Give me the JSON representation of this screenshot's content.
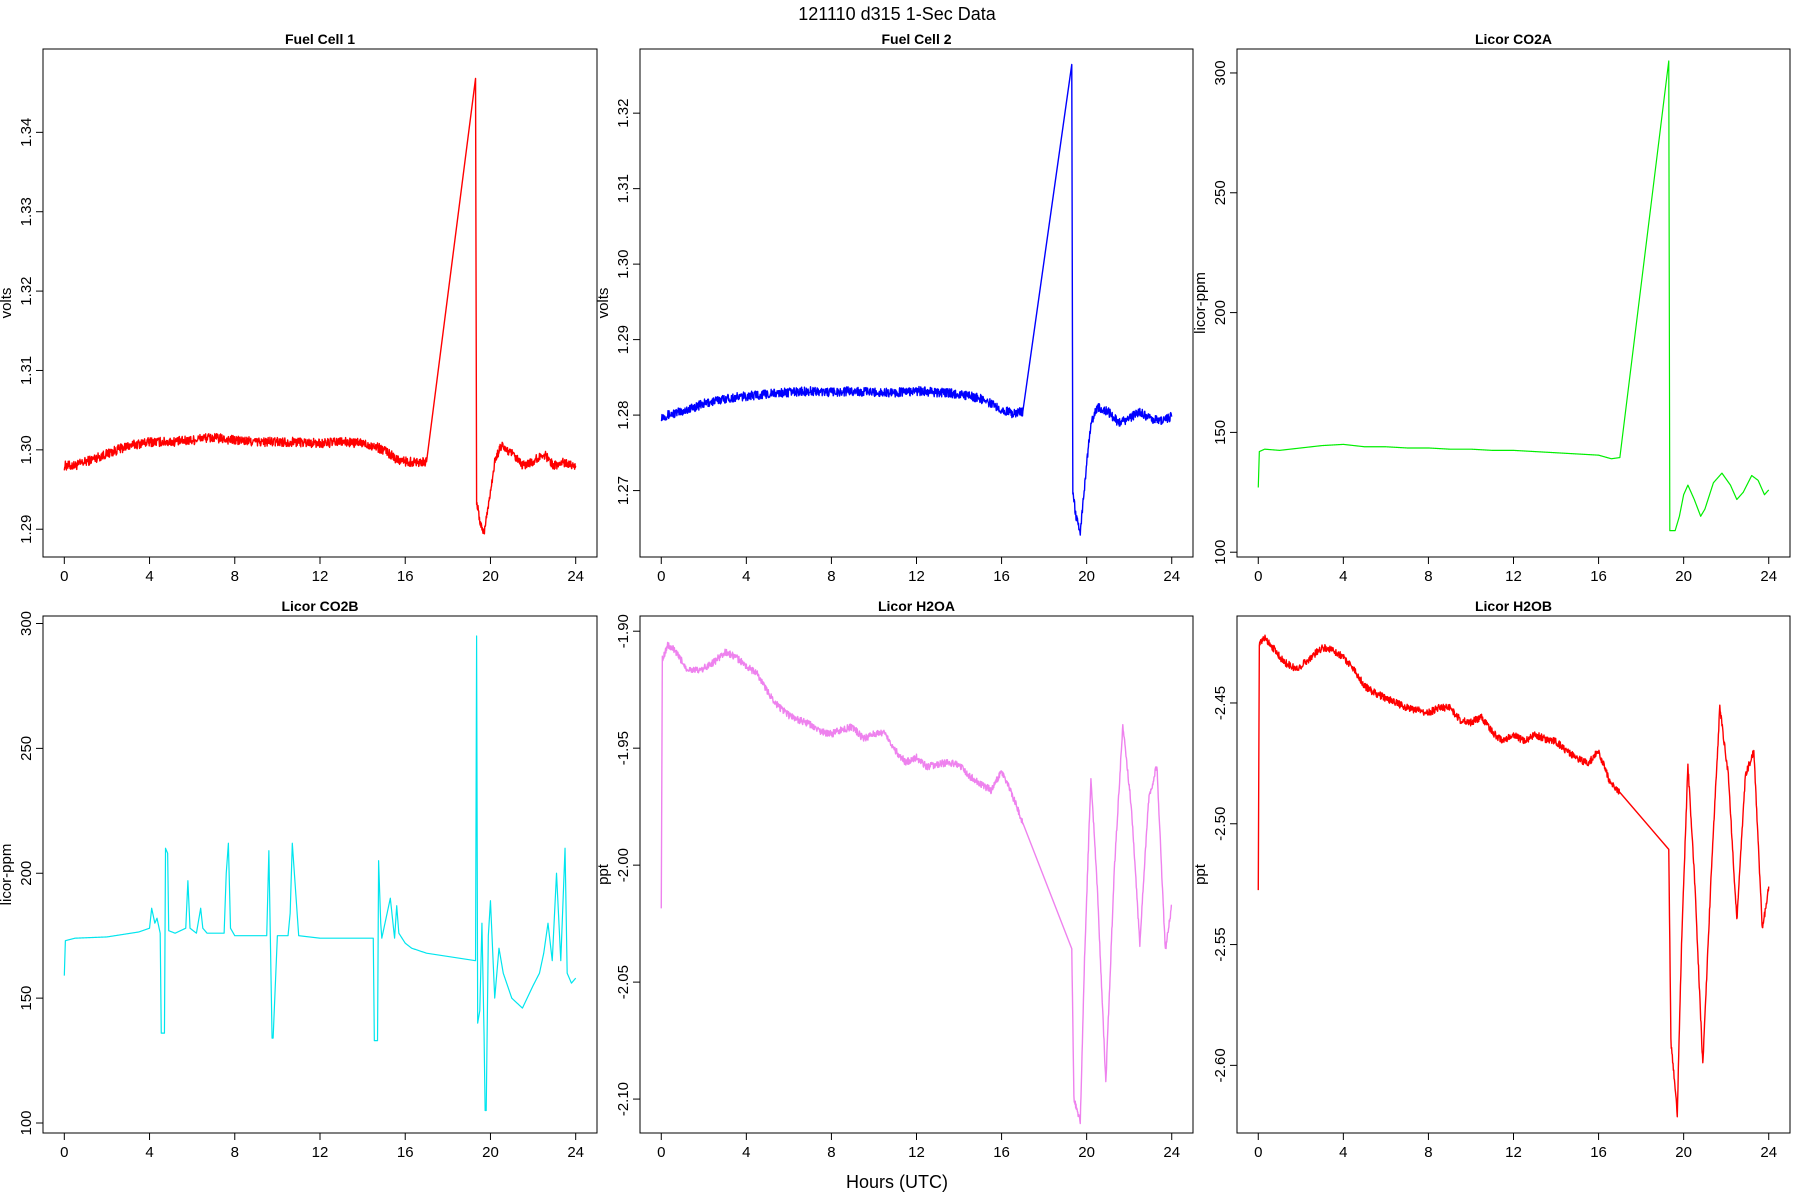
{
  "figure": {
    "title": "121110   d315   1-Sec Data",
    "xlabel": "Hours (UTC)"
  },
  "chart_data": [
    {
      "type": "line",
      "title": "Fuel Cell 1",
      "ylabel": "volts",
      "color": "#ff0000",
      "xlim": [
        -1,
        25
      ],
      "ylim": [
        1.2865,
        1.3505
      ],
      "xticks": [
        0,
        4,
        8,
        12,
        16,
        20,
        24
      ],
      "yticks": [
        1.29,
        1.3,
        1.31,
        1.32,
        1.33,
        1.34
      ],
      "ytick_labels": [
        "1.29",
        "1.30",
        "1.31",
        "1.32",
        "1.33",
        "1.34"
      ],
      "noise": 0.0006,
      "x": [
        0,
        0.5,
        1,
        2,
        3,
        4,
        5,
        6,
        6.5,
        7,
        8,
        9,
        10,
        11,
        12,
        13,
        14,
        14.5,
        15,
        15.5,
        16,
        16.5,
        17,
        19.3,
        19.35,
        19.5,
        19.7,
        19.9,
        20.2,
        20.5,
        21,
        21.5,
        22,
        22.5,
        23,
        23.5,
        24
      ],
      "y": [
        1.298,
        1.298,
        1.2985,
        1.2995,
        1.3005,
        1.301,
        1.301,
        1.3012,
        1.3015,
        1.3015,
        1.3012,
        1.301,
        1.301,
        1.301,
        1.3008,
        1.301,
        1.3008,
        1.3005,
        1.3,
        1.299,
        1.2985,
        1.2985,
        1.2985,
        1.3465,
        1.2935,
        1.291,
        1.2895,
        1.293,
        1.2985,
        1.3005,
        1.2995,
        1.298,
        1.2985,
        1.2995,
        1.298,
        1.2985,
        1.298
      ]
    },
    {
      "type": "line",
      "title": "Fuel Cell 2",
      "ylabel": "volts",
      "color": "#0000ff",
      "xlim": [
        -1,
        25
      ],
      "ylim": [
        1.2612,
        1.3285
      ],
      "xticks": [
        0,
        4,
        8,
        12,
        16,
        20,
        24
      ],
      "yticks": [
        1.27,
        1.28,
        1.29,
        1.3,
        1.31,
        1.32
      ],
      "ytick_labels": [
        "1.27",
        "1.28",
        "1.29",
        "1.30",
        "1.31",
        "1.32"
      ],
      "noise": 0.0006,
      "x": [
        0,
        1,
        2,
        3,
        4,
        5,
        6,
        7,
        8,
        9,
        10,
        11,
        12,
        13,
        14,
        15,
        15.5,
        16,
        16.5,
        17,
        19.3,
        19.35,
        19.5,
        19.7,
        19.9,
        20.2,
        20.5,
        21,
        21.5,
        22,
        22.5,
        23,
        23.5,
        24
      ],
      "y": [
        1.2798,
        1.2805,
        1.2815,
        1.2822,
        1.2825,
        1.2828,
        1.283,
        1.2832,
        1.283,
        1.2832,
        1.283,
        1.283,
        1.2832,
        1.283,
        1.2828,
        1.2822,
        1.2815,
        1.2808,
        1.2802,
        1.2805,
        1.3265,
        1.27,
        1.2665,
        1.2645,
        1.2705,
        1.279,
        1.281,
        1.2805,
        1.279,
        1.2795,
        1.2805,
        1.2795,
        1.2792,
        1.2798
      ]
    },
    {
      "type": "line",
      "title": "Licor CO2A",
      "ylabel": "licor-ppm",
      "color": "#00ee00",
      "xlim": [
        -1,
        25
      ],
      "ylim": [
        98,
        310
      ],
      "xticks": [
        0,
        4,
        8,
        12,
        16,
        20,
        24
      ],
      "yticks": [
        100,
        150,
        200,
        250,
        300
      ],
      "ytick_labels": [
        "100",
        "150",
        "200",
        "250",
        "300"
      ],
      "noise": 0,
      "x": [
        0,
        0.05,
        0.3,
        1,
        2,
        3,
        4,
        5,
        6,
        7,
        8,
        9,
        10,
        11,
        12,
        13,
        14,
        15,
        16,
        16.6,
        17,
        19.3,
        19.35,
        19.6,
        19.8,
        20.0,
        20.2,
        20.5,
        20.8,
        21.0,
        21.4,
        21.8,
        22.2,
        22.5,
        22.8,
        23.2,
        23.5,
        23.8,
        24
      ],
      "y": [
        127,
        142,
        143,
        142.5,
        143.5,
        144.5,
        145,
        144,
        144,
        143.5,
        143.5,
        143,
        143,
        142.5,
        142.5,
        142,
        141.5,
        141,
        140.5,
        139,
        139.5,
        305,
        109,
        109,
        115,
        124,
        128,
        122,
        115,
        118,
        129,
        133,
        128,
        122,
        125,
        132,
        130,
        124,
        126
      ]
    },
    {
      "type": "line",
      "title": "Licor CO2B",
      "ylabel": "licor-ppm",
      "color": "#00e5ee",
      "xlim": [
        -1,
        25
      ],
      "ylim": [
        96,
        303
      ],
      "xticks": [
        0,
        4,
        8,
        12,
        16,
        20,
        24
      ],
      "yticks": [
        100,
        150,
        200,
        250,
        300
      ],
      "ytick_labels": [
        "100",
        "150",
        "200",
        "250",
        "300"
      ],
      "noise": 0,
      "x": [
        0,
        0.05,
        0.5,
        2,
        3.5,
        4.0,
        4.1,
        4.25,
        4.35,
        4.5,
        4.55,
        4.7,
        4.75,
        4.85,
        4.9,
        5.2,
        5.7,
        5.8,
        5.9,
        6.2,
        6.4,
        6.5,
        6.7,
        7.5,
        7.6,
        7.7,
        7.8,
        8,
        9,
        9.5,
        9.6,
        9.75,
        9.8,
        10.0,
        10.5,
        10.6,
        10.7,
        11,
        12,
        13,
        14,
        14.5,
        14.55,
        14.7,
        14.75,
        14.85,
        14.9,
        15.0,
        15.3,
        15.5,
        15.6,
        15.7,
        16,
        16.3,
        17.0,
        19.3,
        19.35,
        19.4,
        19.5,
        19.6,
        19.7,
        19.75,
        19.8,
        19.9,
        20.0,
        20.2,
        20.4,
        20.6,
        21.0,
        21.5,
        22.0,
        22.3,
        22.5,
        22.7,
        22.9,
        23.1,
        23.3,
        23.5,
        23.6,
        23.8,
        24
      ],
      "y": [
        159,
        173,
        174,
        174.5,
        176.5,
        178,
        186,
        180,
        182,
        176,
        136,
        136,
        210,
        208,
        177,
        176,
        178,
        197,
        178,
        176,
        186,
        178,
        176,
        176,
        200,
        212,
        178,
        175,
        175,
        175,
        209,
        134,
        134,
        175,
        175,
        184,
        212,
        175,
        174,
        174,
        174,
        174,
        133,
        133,
        205,
        180,
        174,
        178,
        190,
        174,
        187,
        176,
        172,
        170,
        168,
        165,
        295,
        140,
        145,
        180,
        135,
        105,
        105,
        175,
        189,
        150,
        170,
        160,
        150,
        146,
        155,
        160,
        168,
        180,
        165,
        200,
        165,
        210,
        160,
        156,
        158
      ]
    },
    {
      "type": "line",
      "title": "Licor H2OA",
      "ylabel": "ppt",
      "color": "#ee82ee",
      "xlim": [
        -1,
        25
      ],
      "ylim": [
        -2.1145,
        -1.8935
      ],
      "xticks": [
        0,
        4,
        8,
        12,
        16,
        20,
        24
      ],
      "yticks": [
        -2.1,
        -2.05,
        -2.0,
        -1.95,
        -1.9
      ],
      "ytick_labels": [
        "-2.10",
        "-2.05",
        "-2.00",
        "-1.95",
        "-1.90"
      ],
      "noise": 0.0015,
      "x": [
        0,
        0.05,
        0.3,
        0.6,
        1.2,
        1.8,
        2.5,
        3.0,
        3.5,
        4.0,
        4.5,
        5,
        5.5,
        6,
        6.5,
        7,
        7.5,
        8,
        8.5,
        9,
        9.5,
        10,
        10.5,
        11,
        11.5,
        12,
        12.5,
        13,
        13.5,
        14,
        14.5,
        15,
        15.5,
        16.0,
        16.5,
        17.0,
        19.3,
        19.4,
        19.7,
        19.9,
        20.2,
        20.5,
        20.9,
        21.3,
        21.7,
        22.1,
        22.5,
        22.9,
        23.3,
        23.7,
        24
      ],
      "y": [
        -2.017,
        -1.912,
        -1.906,
        -1.908,
        -1.916,
        -1.917,
        -1.913,
        -1.909,
        -1.911,
        -1.915,
        -1.918,
        -1.926,
        -1.932,
        -1.936,
        -1.938,
        -1.94,
        -1.943,
        -1.944,
        -1.942,
        -1.941,
        -1.946,
        -1.944,
        -1.943,
        -1.951,
        -1.956,
        -1.954,
        -1.958,
        -1.957,
        -1.956,
        -1.957,
        -1.962,
        -1.965,
        -1.968,
        -1.96,
        -1.97,
        -1.982,
        -2.036,
        -2.1,
        -2.11,
        -2.04,
        -1.962,
        -2.01,
        -2.093,
        -2.002,
        -1.94,
        -1.975,
        -2.034,
        -1.973,
        -1.957,
        -2.037,
        -2.017
      ]
    },
    {
      "type": "line",
      "title": "Licor H2OB",
      "ylabel": "ppt",
      "color": "#ff0000",
      "xlim": [
        -1,
        25
      ],
      "ylim": [
        -2.628,
        -2.414
      ],
      "xticks": [
        0,
        4,
        8,
        12,
        16,
        20,
        24
      ],
      "yticks": [
        -2.6,
        -2.55,
        -2.5,
        -2.45
      ],
      "ytick_labels": [
        "-2.60",
        "-2.55",
        "-2.50",
        "-2.45"
      ],
      "noise": 0.0015,
      "x": [
        0,
        0.05,
        0.3,
        0.6,
        1.2,
        1.8,
        2.5,
        3.0,
        3.5,
        4.0,
        4.5,
        5,
        5.5,
        6,
        6.5,
        7,
        7.5,
        8,
        8.5,
        9,
        9.5,
        10,
        10.5,
        11,
        11.5,
        12,
        12.5,
        13,
        13.5,
        14,
        14.5,
        15,
        15.5,
        16.0,
        16.5,
        17.0,
        19.3,
        19.4,
        19.7,
        19.9,
        20.2,
        20.5,
        20.9,
        21.3,
        21.7,
        22.1,
        22.5,
        22.9,
        23.3,
        23.7,
        24
      ],
      "y": [
        -2.526,
        -2.426,
        -2.423,
        -2.426,
        -2.433,
        -2.436,
        -2.431,
        -2.427,
        -2.428,
        -2.431,
        -2.436,
        -2.443,
        -2.446,
        -2.448,
        -2.45,
        -2.452,
        -2.453,
        -2.454,
        -2.452,
        -2.452,
        -2.457,
        -2.458,
        -2.456,
        -2.462,
        -2.466,
        -2.463,
        -2.466,
        -2.463,
        -2.465,
        -2.466,
        -2.47,
        -2.473,
        -2.475,
        -2.47,
        -2.482,
        -2.487,
        -2.51,
        -2.59,
        -2.62,
        -2.55,
        -2.476,
        -2.52,
        -2.6,
        -2.52,
        -2.452,
        -2.48,
        -2.54,
        -2.48,
        -2.47,
        -2.544,
        -2.526
      ]
    }
  ]
}
